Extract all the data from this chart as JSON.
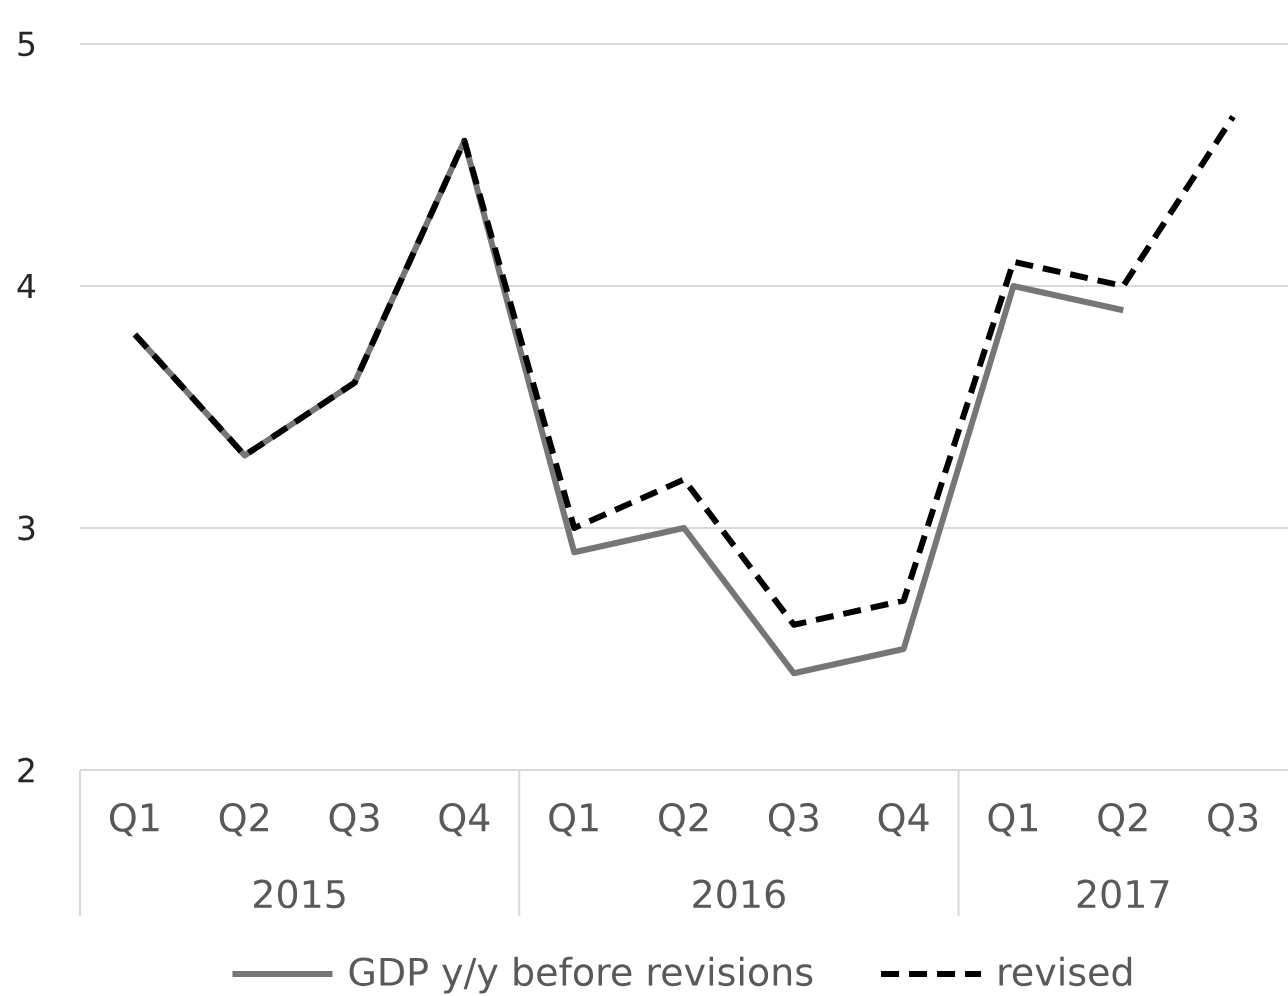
{
  "chart_data": {
    "type": "line",
    "categories": [
      "Q1",
      "Q2",
      "Q3",
      "Q4",
      "Q1",
      "Q2",
      "Q3",
      "Q4",
      "Q1",
      "Q2",
      "Q3"
    ],
    "series": [
      {
        "name": "GDP y/y before revisions",
        "color": "#767676",
        "line_style": "solid",
        "values": [
          3.8,
          3.3,
          3.6,
          4.6,
          2.9,
          3.0,
          2.4,
          2.5,
          4.0,
          3.9,
          null
        ]
      },
      {
        "name": "revised",
        "color": "#000000",
        "line_style": "dashed",
        "values": [
          3.8,
          3.3,
          3.6,
          4.6,
          3.0,
          3.2,
          2.6,
          2.7,
          4.1,
          4.0,
          4.7
        ]
      }
    ],
    "ylim": [
      2,
      5
    ],
    "yticks": [
      2,
      3,
      4,
      5
    ],
    "grid": "y",
    "legend": "bottom",
    "marker": "none",
    "annotations": [
      "2015",
      "2016",
      "2017"
    ]
  }
}
